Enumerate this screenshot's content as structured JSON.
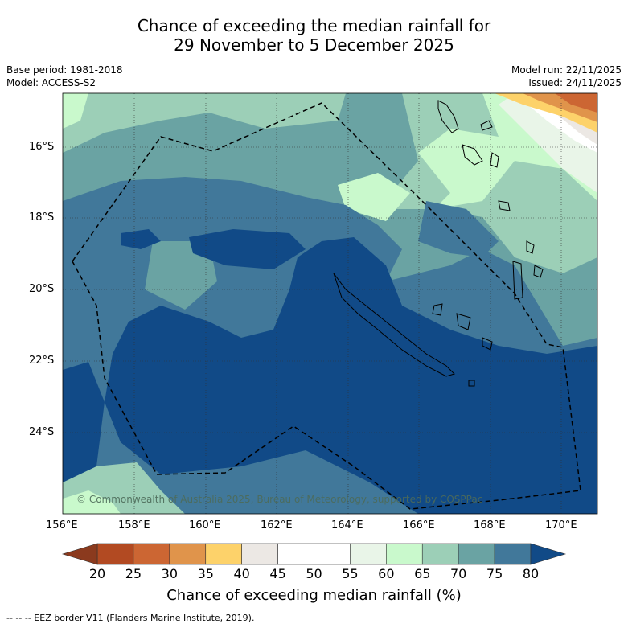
{
  "title": {
    "line1": "Chance of exceeding the median rainfall for",
    "line2": "29 November to 5 December 2025"
  },
  "meta": {
    "base_period": "Base period: 1981-2018",
    "model": "Model: ACCESS-S2",
    "model_run": "Model run: 22/11/2025",
    "issued": "Issued: 24/11/2025"
  },
  "map": {
    "lon_labels": [
      "156°E",
      "158°E",
      "160°E",
      "162°E",
      "164°E",
      "166°E",
      "168°E",
      "170°E"
    ],
    "lat_labels": [
      "16°S",
      "18°S",
      "20°S",
      "22°S",
      "24°S"
    ],
    "copyright": "© Commonwealth of Australia 2025, Bureau of Meteorology, supported by COSPPac"
  },
  "colorbar": {
    "title": "Chance of exceeding median rainfall (%)",
    "ticks": [
      "20",
      "25",
      "30",
      "35",
      "40",
      "45",
      "50",
      "55",
      "60",
      "65",
      "70",
      "75",
      "80"
    ],
    "colors": [
      "#b24a22",
      "#cc6633",
      "#e0944b",
      "#fdd26a",
      "#ece8e4",
      "#ffffff",
      "#ffffff",
      "#e9f5e8",
      "#c9f9cc",
      "#9ccfb7",
      "#6aa3a3",
      "#41789a"
    ],
    "under_color": "#8b3a1e",
    "over_color": "#114a87"
  },
  "legend": {
    "eez": "--  --  -- EEZ border V11 (Flanders Marine Institute, 2019)."
  }
}
